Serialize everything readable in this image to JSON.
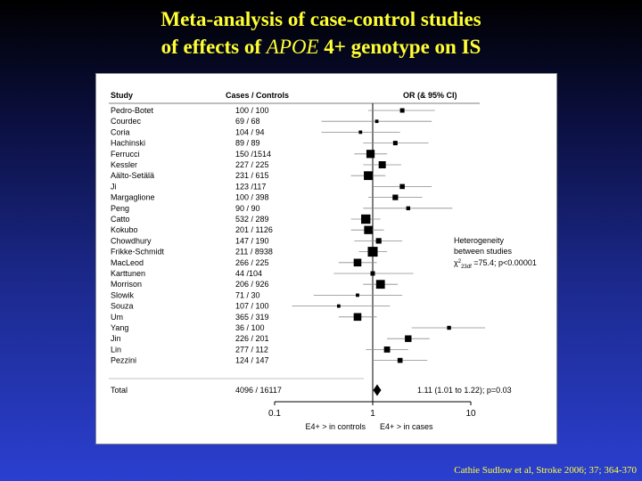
{
  "slide": {
    "title_line1": "Meta-analysis of case-control studies",
    "title_line2_pre": "of effects of ",
    "title_line2_gene": "APOE",
    "title_line2_post": " 4+ genotype on IS",
    "citation": "Cathie Sudlow et al, Stroke 2006; 37; 364-370"
  },
  "chart_data": {
    "type": "forest",
    "headers": {
      "study": "Study",
      "counts": "Cases / Controls",
      "effect": "OR (& 95% CI)"
    },
    "x_scale": "log",
    "xlim": [
      0.1,
      10
    ],
    "xticks": [
      0.1,
      1,
      10
    ],
    "xtick_labels": [
      "0.1",
      "1",
      "10"
    ],
    "reference_line": 1,
    "direction_labels": {
      "left": "E4+ > in controls",
      "right": "E4+ > in cases"
    },
    "studies": [
      {
        "name": "Pedro-Botet",
        "counts": "100 / 100",
        "or": 2.0,
        "lo": 0.9,
        "hi": 4.3,
        "weight": 1.0
      },
      {
        "name": "Courdec",
        "counts": "69 / 68",
        "or": 1.1,
        "lo": 0.3,
        "hi": 4.0,
        "weight": 0.6
      },
      {
        "name": "Coria",
        "counts": "104 / 94",
        "or": 0.75,
        "lo": 0.3,
        "hi": 1.9,
        "weight": 0.6
      },
      {
        "name": "Hachinski",
        "counts": "89 / 89",
        "or": 1.7,
        "lo": 0.8,
        "hi": 3.7,
        "weight": 1.0
      },
      {
        "name": "Ferrucci",
        "counts": "150 /1514",
        "or": 0.95,
        "lo": 0.65,
        "hi": 1.4,
        "weight": 2.4
      },
      {
        "name": "Kessler",
        "counts": "227 / 225",
        "or": 1.25,
        "lo": 0.8,
        "hi": 1.95,
        "weight": 2.0
      },
      {
        "name": "Aälto-Setälä",
        "counts": "231 / 615",
        "or": 0.9,
        "lo": 0.6,
        "hi": 1.35,
        "weight": 2.6
      },
      {
        "name": "Ji",
        "counts": "123 /117",
        "or": 2.0,
        "lo": 1.0,
        "hi": 4.0,
        "weight": 1.2
      },
      {
        "name": "Margaglione",
        "counts": "100 / 398",
        "or": 1.7,
        "lo": 0.9,
        "hi": 3.2,
        "weight": 1.4
      },
      {
        "name": "Peng",
        "counts": "90 / 90",
        "or": 2.3,
        "lo": 0.8,
        "hi": 6.5,
        "weight": 0.8
      },
      {
        "name": "Catto",
        "counts": "532 / 289",
        "or": 0.85,
        "lo": 0.6,
        "hi": 1.2,
        "weight": 2.8
      },
      {
        "name": "Kokubo",
        "counts": "201 / 1126",
        "or": 0.9,
        "lo": 0.6,
        "hi": 1.3,
        "weight": 2.4
      },
      {
        "name": "Chowdhury",
        "counts": "147 / 190",
        "or": 1.15,
        "lo": 0.65,
        "hi": 2.0,
        "weight": 1.4
      },
      {
        "name": "Frikke-Schmidt",
        "counts": "211 / 8938",
        "or": 1.0,
        "lo": 0.72,
        "hi": 1.4,
        "weight": 3.0
      },
      {
        "name": "MacLeod",
        "counts": "266 / 225",
        "or": 0.7,
        "lo": 0.45,
        "hi": 1.1,
        "weight": 2.2
      },
      {
        "name": "Karttunen",
        "counts": "44 /104",
        "or": 1.0,
        "lo": 0.4,
        "hi": 2.6,
        "weight": 1.0
      },
      {
        "name": "Morrison",
        "counts": "206 / 926",
        "or": 1.2,
        "lo": 0.8,
        "hi": 1.8,
        "weight": 2.6
      },
      {
        "name": "Slowik",
        "counts": "71 / 30",
        "or": 0.7,
        "lo": 0.25,
        "hi": 2.0,
        "weight": 0.6
      },
      {
        "name": "Souza",
        "counts": "107 / 100",
        "or": 0.45,
        "lo": 0.15,
        "hi": 1.5,
        "weight": 0.6
      },
      {
        "name": "Um",
        "counts": "365 / 319",
        "or": 0.7,
        "lo": 0.45,
        "hi": 1.1,
        "weight": 2.2
      },
      {
        "name": "Yang",
        "counts": "36 / 100",
        "or": 6.0,
        "lo": 2.5,
        "hi": 14.0,
        "weight": 0.8
      },
      {
        "name": "Jin",
        "counts": "226 / 201",
        "or": 2.3,
        "lo": 1.4,
        "hi": 3.8,
        "weight": 1.8
      },
      {
        "name": "Lin",
        "counts": "277 / 112",
        "or": 1.4,
        "lo": 0.85,
        "hi": 2.3,
        "weight": 1.6
      },
      {
        "name": "Pezzini",
        "counts": "124 / 147",
        "or": 1.9,
        "lo": 1.0,
        "hi": 3.6,
        "weight": 1.2
      }
    ],
    "total": {
      "name": "Total",
      "counts": "4096 / 16117",
      "or": 1.11,
      "lo": 1.01,
      "hi": 1.22,
      "label": "1.11 (1.01 to 1.22); p=0.03"
    },
    "annotation": {
      "line1": "Heterogeneity",
      "line2": "between studies",
      "chi_symbol": "χ",
      "chi_sup": "2",
      "chi_sub": "23df",
      "chi_rest": " =75.4; p<0.00001"
    },
    "colors": {
      "marks": "#000000",
      "ci_line": "#8c8c8c",
      "rule": "#555555"
    }
  }
}
